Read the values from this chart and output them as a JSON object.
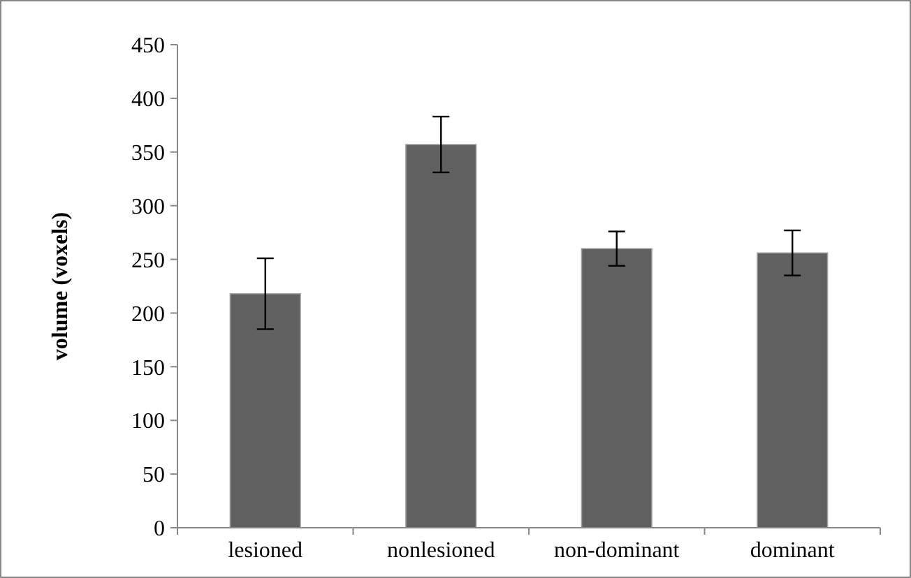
{
  "chart_data": {
    "type": "bar",
    "ylabel": "volume (voxels)",
    "categories": [
      "lesioned",
      "nonlesioned",
      "non-dominant",
      "dominant"
    ],
    "values": [
      218,
      357,
      260,
      256
    ],
    "errors": [
      33,
      26,
      16,
      21
    ],
    "color": "#606060",
    "ylim": [
      0,
      450
    ],
    "yticks": [
      0,
      50,
      100,
      150,
      200,
      250,
      300,
      350,
      400,
      450
    ],
    "grid": false
  }
}
